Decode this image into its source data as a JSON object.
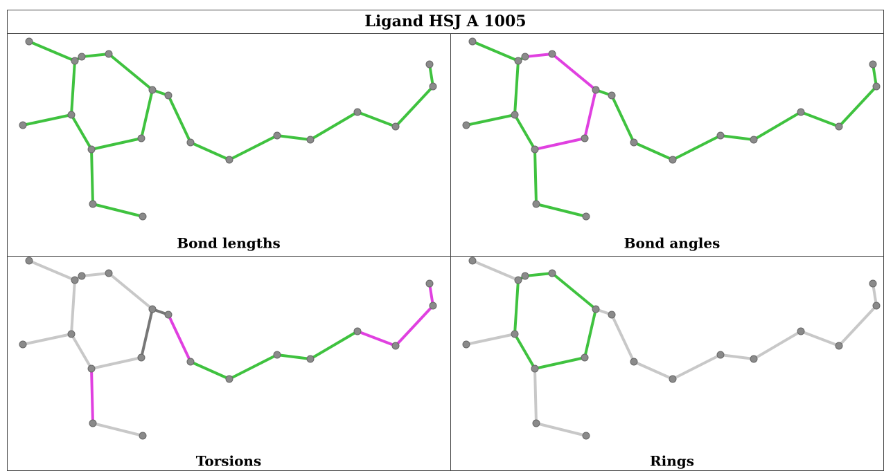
{
  "table": {
    "title": "Ligand HSJ A 1005",
    "panels": [
      {
        "caption": "Bond lengths"
      },
      {
        "caption": "Bond angles"
      },
      {
        "caption": "Torsions"
      },
      {
        "caption": "Rings"
      }
    ]
  }
}
